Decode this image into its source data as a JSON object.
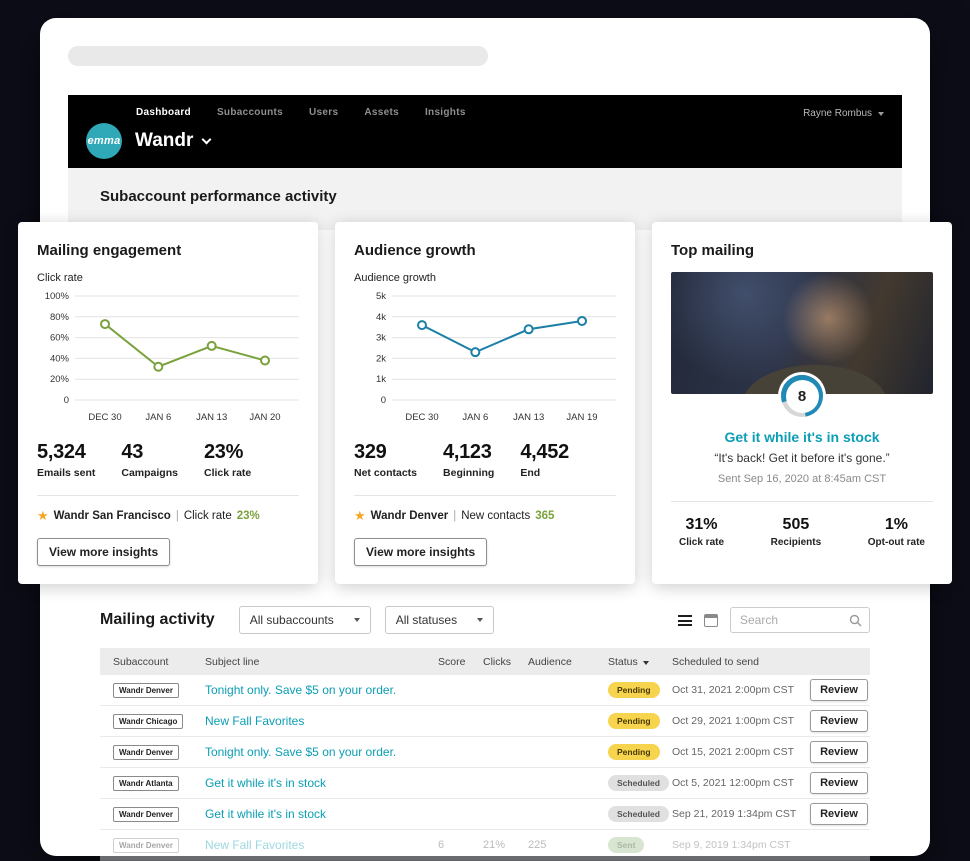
{
  "colors": {
    "brand_teal": "#2fa9b7",
    "link_teal": "#0b9eb4",
    "chart_green": "#7aa23c",
    "chart_blue": "#1b7fa6",
    "star_gold": "#f5a623",
    "pending_yellow": "#f6d44d",
    "scheduled_gray": "#e0e0e0",
    "sent_green": "#9fbf8f"
  },
  "nav": {
    "links": [
      {
        "label": "Dashboard",
        "active": true
      },
      {
        "label": "Subaccounts",
        "active": false
      },
      {
        "label": "Users",
        "active": false
      },
      {
        "label": "Assets",
        "active": false
      },
      {
        "label": "Insights",
        "active": false
      }
    ],
    "user_menu": "Rayne Rombus",
    "logo_text": "emma",
    "account_name": "Wandr"
  },
  "performance": {
    "heading": "Subaccount performance activity",
    "cards": [
      {
        "title": "Mailing engagement",
        "chart_label": "Click rate",
        "stats": [
          {
            "value": "5,324",
            "label": "Emails sent"
          },
          {
            "value": "43",
            "label": "Campaigns"
          },
          {
            "value": "23%",
            "label": "Click rate"
          }
        ],
        "highlight_name": "Wandr San Francisco",
        "highlight_sep": "|",
        "highlight_metric": "Click rate",
        "highlight_value": "23%",
        "button": "View more insights"
      },
      {
        "title": "Audience growth",
        "chart_label": "Audience growth",
        "stats": [
          {
            "value": "329",
            "label": "Net contacts"
          },
          {
            "value": "4,123",
            "label": "Beginning"
          },
          {
            "value": "4,452",
            "label": "End"
          }
        ],
        "highlight_name": "Wandr Denver",
        "highlight_sep": "|",
        "highlight_metric": "New contacts",
        "highlight_value": "365",
        "button": "View more insights"
      }
    ],
    "top_mailing": {
      "title": "Top mailing",
      "badge": "8",
      "link": "Get it while it's in stock",
      "quote": "“It's back! Get it before it's gone.”",
      "sent": "Sent Sep 16, 2020 at 8:45am CST",
      "stats": [
        {
          "value": "31%",
          "label": "Click rate"
        },
        {
          "value": "505",
          "label": "Recipients"
        },
        {
          "value": "1%",
          "label": "Opt-out rate"
        }
      ]
    }
  },
  "chart_data": [
    {
      "type": "line",
      "title": "Mailing engagement",
      "ylabel": "Click rate",
      "categories": [
        "DEC 30",
        "JAN 6",
        "JAN 13",
        "JAN 20"
      ],
      "values": [
        73,
        32,
        52,
        38
      ],
      "yticks": [
        "100%",
        "80%",
        "60%",
        "40%",
        "20%",
        "0"
      ],
      "ylim": [
        0,
        100
      ],
      "line_color": "#7aa23c",
      "grid": true,
      "legend": "none"
    },
    {
      "type": "line",
      "title": "Audience growth",
      "ylabel": "Audience growth",
      "categories": [
        "DEC 30",
        "JAN 6",
        "JAN 13",
        "JAN 19"
      ],
      "values": [
        3600,
        2300,
        3400,
        3800
      ],
      "yticks": [
        "5k",
        "4k",
        "3k",
        "2k",
        "1k",
        "0"
      ],
      "ylim": [
        0,
        5000
      ],
      "line_color": "#1b7fa6",
      "grid": true,
      "legend": "none"
    }
  ],
  "mailing": {
    "heading": "Mailing activity",
    "filters": [
      {
        "value": "All subaccounts"
      },
      {
        "value": "All statuses"
      }
    ],
    "search_placeholder": "Search",
    "columns": [
      "Subaccount",
      "Subject line",
      "Score",
      "Clicks",
      "Audience",
      "Status",
      "Scheduled to send"
    ],
    "rows": [
      {
        "subaccount": "Wandr Denver",
        "subject": "Tonight only. Save $5 on your order.",
        "score": "",
        "clicks": "",
        "audience": "",
        "status": "Pending",
        "status_type": "pending",
        "scheduled": "Oct 31, 2021 2:00pm CST",
        "action": "Review",
        "faded": false
      },
      {
        "subaccount": "Wandr Chicago",
        "subject": "New Fall Favorites",
        "score": "",
        "clicks": "",
        "audience": "",
        "status": "Pending",
        "status_type": "pending",
        "scheduled": "Oct 29, 2021 1:00pm CST",
        "action": "Review",
        "faded": false
      },
      {
        "subaccount": "Wandr Denver",
        "subject": "Tonight only. Save $5 on your order.",
        "score": "",
        "clicks": "",
        "audience": "",
        "status": "Pending",
        "status_type": "pending",
        "scheduled": "Oct 15, 2021 2:00pm CST",
        "action": "Review",
        "faded": false
      },
      {
        "subaccount": "Wandr Atlanta",
        "subject": "Get it while it's in stock",
        "score": "",
        "clicks": "",
        "audience": "",
        "status": "Scheduled",
        "status_type": "scheduled",
        "scheduled": "Oct 5, 2021 12:00pm CST",
        "action": "Review",
        "faded": false
      },
      {
        "subaccount": "Wandr Denver",
        "subject": "Get it while it's in stock",
        "score": "",
        "clicks": "",
        "audience": "",
        "status": "Scheduled",
        "status_type": "scheduled",
        "scheduled": "Sep 21, 2019 1:34pm CST",
        "action": "Review",
        "faded": false
      },
      {
        "subaccount": "Wandr Denver",
        "subject": "New Fall Favorites",
        "score": "6",
        "clicks": "21%",
        "audience": "225",
        "status": "Sent",
        "status_type": "sent",
        "scheduled": "Sep 9, 2019 1:34pm CST",
        "action": "",
        "faded": true
      }
    ]
  }
}
